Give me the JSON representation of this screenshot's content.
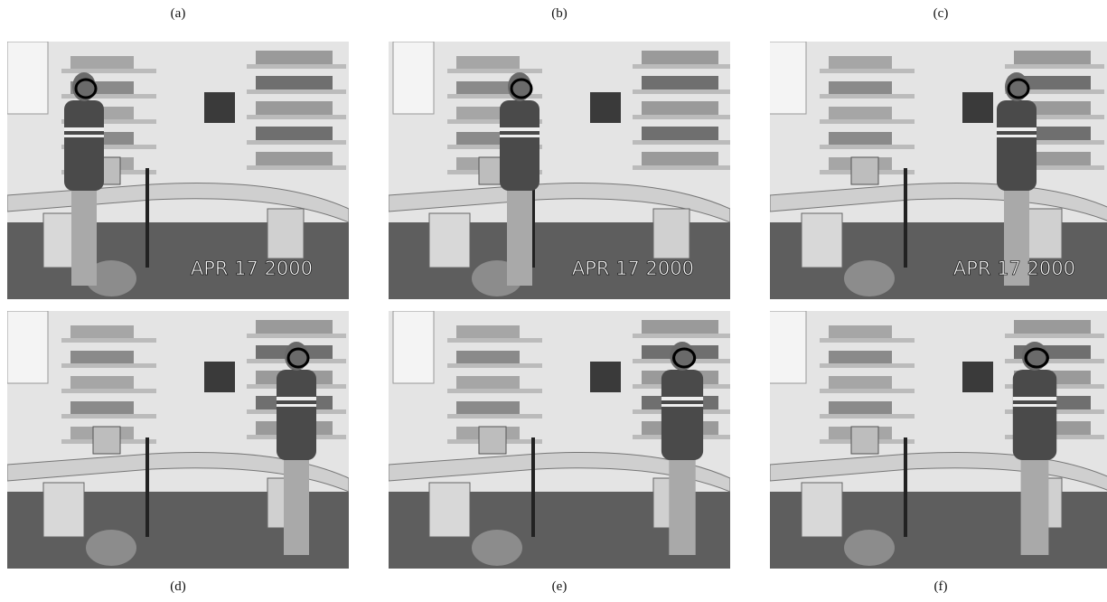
{
  "panels": [
    {
      "label": "(a)",
      "timestamp": "APR 17 2000"
    },
    {
      "label": "(b)",
      "timestamp": "APR 17 2000"
    },
    {
      "label": "(c)",
      "timestamp": "APR 17 2000"
    },
    {
      "label": "(d)"
    },
    {
      "label": "(e)"
    },
    {
      "label": "(f)"
    }
  ]
}
